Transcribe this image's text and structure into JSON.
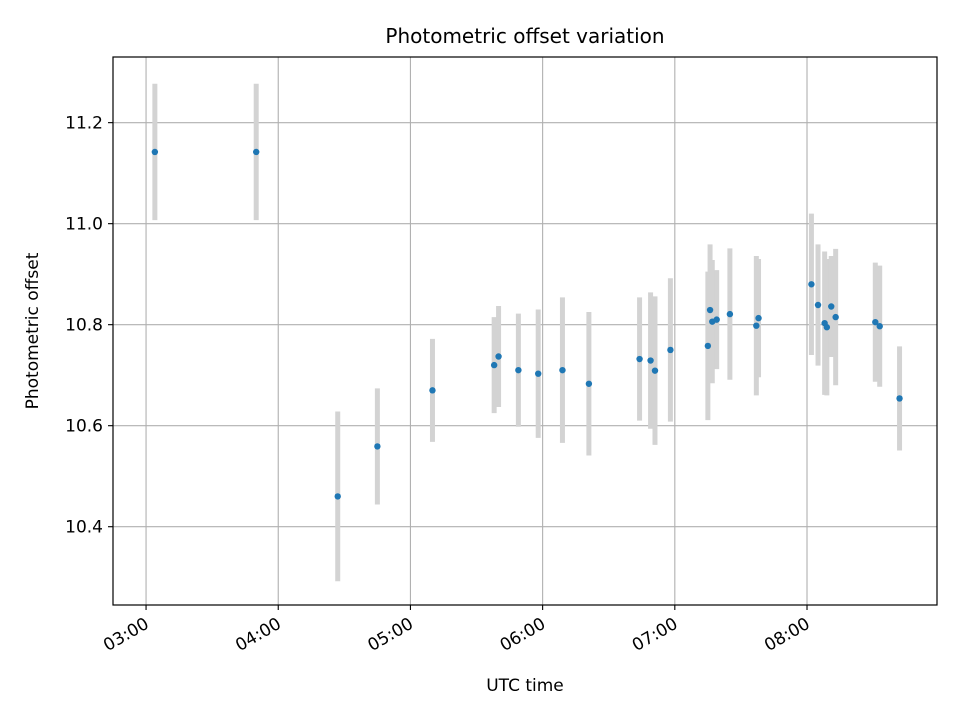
{
  "chart_data": {
    "type": "scatter",
    "title": "Photometric offset variation",
    "xlabel": "UTC time",
    "ylabel": "Photometric offset",
    "x_unit": "hours UTC",
    "xlim": [
      "02:45",
      "08:59"
    ],
    "ylim": [
      10.245,
      11.33
    ],
    "x_ticks": [
      "03:00",
      "04:00",
      "05:00",
      "06:00",
      "07:00",
      "08:00"
    ],
    "y_ticks": [
      10.4,
      10.6,
      10.8,
      11.0,
      11.2
    ],
    "y_tick_labels": [
      "10.4",
      "10.6",
      "10.8",
      "11.0",
      "11.2"
    ],
    "grid": true,
    "series": [
      {
        "marker_color": "#1f77b4",
        "error_bar_color": "#d3d3d3",
        "points": [
          {
            "x": "03:04",
            "y": 11.142,
            "yerr": 0.135
          },
          {
            "x": "03:50",
            "y": 11.142,
            "yerr": 0.135
          },
          {
            "x": "04:27",
            "y": 10.46,
            "yerr": 0.168
          },
          {
            "x": "04:45",
            "y": 10.559,
            "yerr": 0.115
          },
          {
            "x": "05:10",
            "y": 10.67,
            "yerr": 0.102
          },
          {
            "x": "05:38",
            "y": 10.72,
            "yerr": 0.095
          },
          {
            "x": "05:40",
            "y": 10.737,
            "yerr": 0.1
          },
          {
            "x": "05:49",
            "y": 10.71,
            "yerr": 0.112
          },
          {
            "x": "05:58",
            "y": 10.703,
            "yerr": 0.127
          },
          {
            "x": "06:09",
            "y": 10.71,
            "yerr": 0.144
          },
          {
            "x": "06:21",
            "y": 10.683,
            "yerr": 0.142
          },
          {
            "x": "06:44",
            "y": 10.732,
            "yerr": 0.122
          },
          {
            "x": "06:49",
            "y": 10.729,
            "yerr": 0.135
          },
          {
            "x": "06:51",
            "y": 10.709,
            "yerr": 0.147
          },
          {
            "x": "06:58",
            "y": 10.75,
            "yerr": 0.142
          },
          {
            "x": "07:15",
            "y": 10.758,
            "yerr": 0.147
          },
          {
            "x": "07:16",
            "y": 10.829,
            "yerr": 0.13
          },
          {
            "x": "07:17",
            "y": 10.806,
            "yerr": 0.122
          },
          {
            "x": "07:19",
            "y": 10.81,
            "yerr": 0.098
          },
          {
            "x": "07:25",
            "y": 10.821,
            "yerr": 0.13
          },
          {
            "x": "07:37",
            "y": 10.798,
            "yerr": 0.138
          },
          {
            "x": "07:38",
            "y": 10.813,
            "yerr": 0.117
          },
          {
            "x": "08:02",
            "y": 10.88,
            "yerr": 0.14
          },
          {
            "x": "08:05",
            "y": 10.839,
            "yerr": 0.12
          },
          {
            "x": "08:08",
            "y": 10.803,
            "yerr": 0.142
          },
          {
            "x": "08:09",
            "y": 10.795,
            "yerr": 0.135
          },
          {
            "x": "08:11",
            "y": 10.836,
            "yerr": 0.1
          },
          {
            "x": "08:13",
            "y": 10.815,
            "yerr": 0.135
          },
          {
            "x": "08:31",
            "y": 10.805,
            "yerr": 0.118
          },
          {
            "x": "08:33",
            "y": 10.797,
            "yerr": 0.12
          },
          {
            "x": "08:42",
            "y": 10.654,
            "yerr": 0.103
          }
        ]
      }
    ]
  }
}
